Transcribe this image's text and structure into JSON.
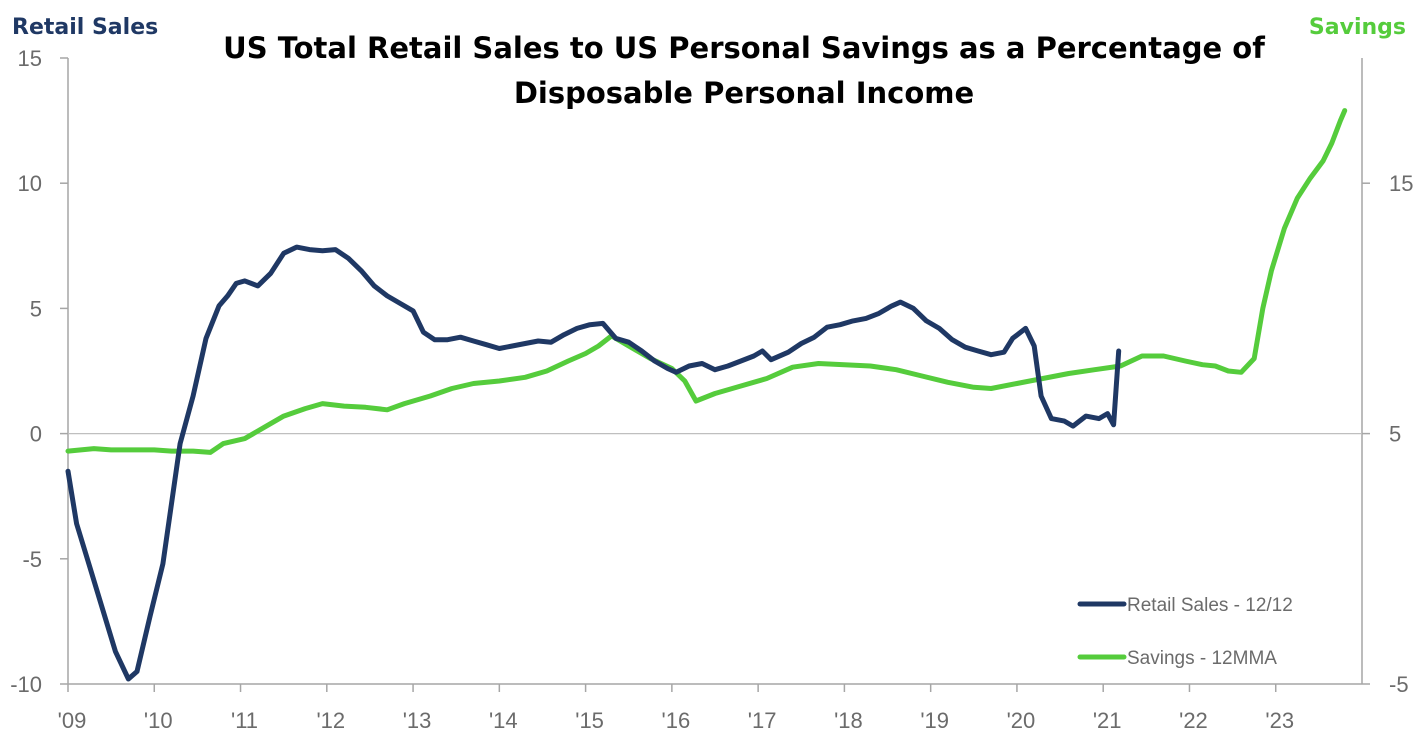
{
  "chart_data": {
    "type": "line",
    "title": "US Total Retail Sales to US Personal Savings as a Percentage of Disposable Personal Income",
    "title_lines": [
      "US Total Retail Sales to US Personal Savings as a Percentage of",
      "Disposable Personal Income"
    ],
    "left_axis_label": "Retail Sales",
    "right_axis_label": "Savings",
    "left_ylim": [
      -10,
      15
    ],
    "right_ylim": [
      -5,
      20
    ],
    "left_ticks": [
      15,
      10,
      5,
      0,
      -5,
      -10
    ],
    "left_tick_labels": [
      "15",
      "10",
      "5",
      "0",
      "-5",
      "-10"
    ],
    "right_ticks": [
      15,
      5,
      -5
    ],
    "right_tick_labels": [
      "15",
      "5",
      "-5"
    ],
    "xlim": [
      2009.0,
      2024.0
    ],
    "x_ticks": [
      2009,
      2010,
      2011,
      2012,
      2013,
      2014,
      2015,
      2016,
      2017,
      2018,
      2019,
      2020,
      2021,
      2022,
      2023
    ],
    "x_tick_labels": [
      "'09",
      "'10",
      "'11",
      "'12",
      "'13",
      "'14",
      "'15",
      "'16",
      "'17",
      "'18",
      "'19",
      "'20",
      "'21",
      "'22",
      "'23"
    ],
    "grid": false,
    "zero_line": true,
    "legend_position": "bottom-right",
    "series": [
      {
        "name": "Retail Sales - 12/12",
        "axis": "left",
        "color": "#1f3864",
        "points": [
          [
            2009.0,
            -1.5
          ],
          [
            2009.1,
            -3.6
          ],
          [
            2009.25,
            -5.3
          ],
          [
            2009.4,
            -7.0
          ],
          [
            2009.55,
            -8.7
          ],
          [
            2009.7,
            -9.8
          ],
          [
            2009.8,
            -9.5
          ],
          [
            2009.95,
            -7.3
          ],
          [
            2010.1,
            -5.2
          ],
          [
            2010.2,
            -2.8
          ],
          [
            2010.3,
            -0.4
          ],
          [
            2010.45,
            1.5
          ],
          [
            2010.6,
            3.8
          ],
          [
            2010.75,
            5.1
          ],
          [
            2010.85,
            5.5
          ],
          [
            2010.95,
            6.0
          ],
          [
            2011.05,
            6.1
          ],
          [
            2011.2,
            5.9
          ],
          [
            2011.35,
            6.4
          ],
          [
            2011.5,
            7.2
          ],
          [
            2011.65,
            7.45
          ],
          [
            2011.8,
            7.35
          ],
          [
            2011.95,
            7.3
          ],
          [
            2012.1,
            7.35
          ],
          [
            2012.25,
            7.0
          ],
          [
            2012.4,
            6.5
          ],
          [
            2012.55,
            5.9
          ],
          [
            2012.7,
            5.5
          ],
          [
            2012.85,
            5.2
          ],
          [
            2013.0,
            4.9
          ],
          [
            2013.12,
            4.05
          ],
          [
            2013.25,
            3.75
          ],
          [
            2013.4,
            3.75
          ],
          [
            2013.55,
            3.85
          ],
          [
            2013.7,
            3.7
          ],
          [
            2013.85,
            3.55
          ],
          [
            2014.0,
            3.4
          ],
          [
            2014.15,
            3.5
          ],
          [
            2014.3,
            3.6
          ],
          [
            2014.45,
            3.7
          ],
          [
            2014.6,
            3.65
          ],
          [
            2014.75,
            3.95
          ],
          [
            2014.9,
            4.2
          ],
          [
            2015.05,
            4.35
          ],
          [
            2015.2,
            4.4
          ],
          [
            2015.35,
            3.8
          ],
          [
            2015.5,
            3.65
          ],
          [
            2015.65,
            3.3
          ],
          [
            2015.8,
            2.9
          ],
          [
            2015.95,
            2.6
          ],
          [
            2016.05,
            2.45
          ],
          [
            2016.2,
            2.7
          ],
          [
            2016.35,
            2.8
          ],
          [
            2016.5,
            2.55
          ],
          [
            2016.65,
            2.7
          ],
          [
            2016.8,
            2.9
          ],
          [
            2016.95,
            3.1
          ],
          [
            2017.05,
            3.3
          ],
          [
            2017.15,
            2.95
          ],
          [
            2017.35,
            3.25
          ],
          [
            2017.5,
            3.6
          ],
          [
            2017.65,
            3.85
          ],
          [
            2017.8,
            4.25
          ],
          [
            2017.95,
            4.35
          ],
          [
            2018.1,
            4.5
          ],
          [
            2018.25,
            4.6
          ],
          [
            2018.4,
            4.8
          ],
          [
            2018.55,
            5.1
          ],
          [
            2018.65,
            5.25
          ],
          [
            2018.8,
            5.0
          ],
          [
            2018.95,
            4.5
          ],
          [
            2019.1,
            4.2
          ],
          [
            2019.25,
            3.75
          ],
          [
            2019.4,
            3.45
          ],
          [
            2019.55,
            3.3
          ],
          [
            2019.7,
            3.15
          ],
          [
            2019.85,
            3.25
          ],
          [
            2019.95,
            3.8
          ],
          [
            2020.1,
            4.2
          ],
          [
            2020.2,
            3.5
          ],
          [
            2020.28,
            1.5
          ],
          [
            2020.4,
            0.6
          ],
          [
            2020.55,
            0.5
          ],
          [
            2020.65,
            0.3
          ],
          [
            2020.8,
            0.7
          ],
          [
            2020.95,
            0.6
          ],
          [
            2021.05,
            0.8
          ],
          [
            2021.12,
            0.35
          ],
          [
            2021.18,
            3.3
          ]
        ]
      },
      {
        "name": "Savings - 12MMA",
        "axis": "right",
        "color": "#55cc3c",
        "points": [
          [
            2009.0,
            4.3
          ],
          [
            2009.3,
            4.4
          ],
          [
            2009.5,
            4.35
          ],
          [
            2009.8,
            4.35
          ],
          [
            2010.0,
            4.35
          ],
          [
            2010.2,
            4.3
          ],
          [
            2010.45,
            4.3
          ],
          [
            2010.65,
            4.25
          ],
          [
            2010.8,
            4.6
          ],
          [
            2011.05,
            4.8
          ],
          [
            2011.3,
            5.3
          ],
          [
            2011.5,
            5.7
          ],
          [
            2011.75,
            6.0
          ],
          [
            2011.95,
            6.2
          ],
          [
            2012.2,
            6.1
          ],
          [
            2012.45,
            6.05
          ],
          [
            2012.7,
            5.95
          ],
          [
            2012.9,
            6.2
          ],
          [
            2013.2,
            6.5
          ],
          [
            2013.45,
            6.8
          ],
          [
            2013.7,
            7.0
          ],
          [
            2014.0,
            7.1
          ],
          [
            2014.3,
            7.25
          ],
          [
            2014.55,
            7.5
          ],
          [
            2014.8,
            7.9
          ],
          [
            2015.0,
            8.2
          ],
          [
            2015.15,
            8.5
          ],
          [
            2015.3,
            8.9
          ],
          [
            2015.5,
            8.5
          ],
          [
            2015.75,
            8.0
          ],
          [
            2016.0,
            7.6
          ],
          [
            2016.15,
            7.1
          ],
          [
            2016.28,
            6.3
          ],
          [
            2016.5,
            6.6
          ],
          [
            2016.8,
            6.9
          ],
          [
            2017.1,
            7.2
          ],
          [
            2017.4,
            7.65
          ],
          [
            2017.7,
            7.8
          ],
          [
            2018.0,
            7.75
          ],
          [
            2018.3,
            7.7
          ],
          [
            2018.6,
            7.55
          ],
          [
            2018.9,
            7.3
          ],
          [
            2019.2,
            7.05
          ],
          [
            2019.5,
            6.85
          ],
          [
            2019.7,
            6.8
          ],
          [
            2020.0,
            7.0
          ],
          [
            2020.3,
            7.2
          ],
          [
            2020.6,
            7.4
          ],
          [
            2020.9,
            7.55
          ],
          [
            2021.2,
            7.7
          ],
          [
            2021.45,
            8.1
          ],
          [
            2021.7,
            8.1
          ],
          [
            2021.95,
            7.9
          ],
          [
            2022.15,
            7.75
          ],
          [
            2022.3,
            7.7
          ],
          [
            2022.45,
            7.5
          ],
          [
            2022.6,
            7.45
          ],
          [
            2022.75,
            8.0
          ],
          [
            2022.85,
            10.0
          ],
          [
            2022.95,
            11.5
          ],
          [
            2023.1,
            13.2
          ],
          [
            2023.25,
            14.4
          ],
          [
            2023.4,
            15.2
          ],
          [
            2023.55,
            15.9
          ],
          [
            2023.65,
            16.6
          ],
          [
            2023.75,
            17.5
          ],
          [
            2023.8,
            17.9
          ]
        ]
      }
    ]
  }
}
